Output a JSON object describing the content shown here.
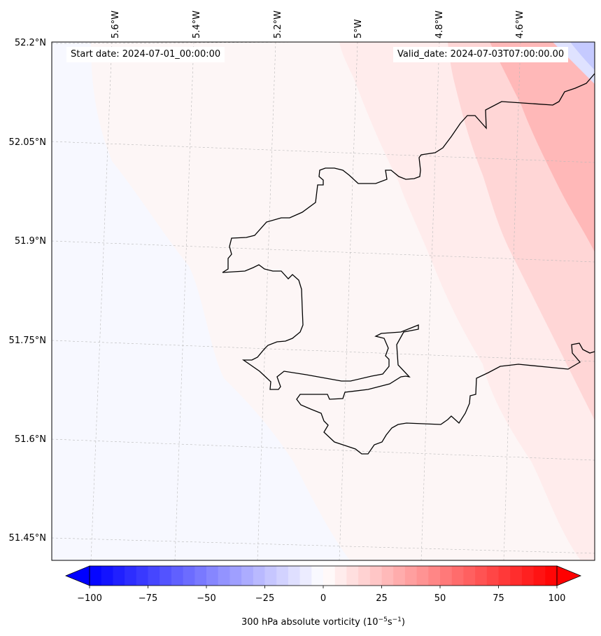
{
  "header": {
    "start_date": "Start date: 2024-07-01_00:00:00",
    "valid_date": "Valid_date: 2024-07-03T07:00:00.00"
  },
  "axes": {
    "lat_labels": [
      "52.2°N",
      "52.05°N",
      "51.9°N",
      "51.75°N",
      "51.6°N",
      "51.45°N"
    ],
    "lon_labels": [
      "5.6°W",
      "5.4°W",
      "5.2°W",
      "5°W",
      "4.8°W",
      "4.6°W"
    ]
  },
  "colorbar": {
    "title": "300 hPa absolute vorticity (10",
    "title_sup1": "−5",
    "title_mid": "s",
    "title_sup2": "−1",
    "title_end": ")",
    "ticks": [
      "−100",
      "−75",
      "−50",
      "−25",
      "0",
      "25",
      "50",
      "75",
      "100"
    ],
    "min": -100,
    "max": 100,
    "low_color": "#0000ff",
    "mid_color": "#ffffff",
    "high_color": "#ff0000"
  },
  "colors": {
    "coastline": "#000000",
    "grid": "#b0b0b0",
    "field_negative_light": "#f7f8ff",
    "field_zero": "#fdf6f6",
    "field_positive_1": "#ffecec",
    "field_positive_2": "#ffd6d6",
    "field_positive_3": "#ffb8b8",
    "field_negative_corner": "#dfe2ff"
  }
}
